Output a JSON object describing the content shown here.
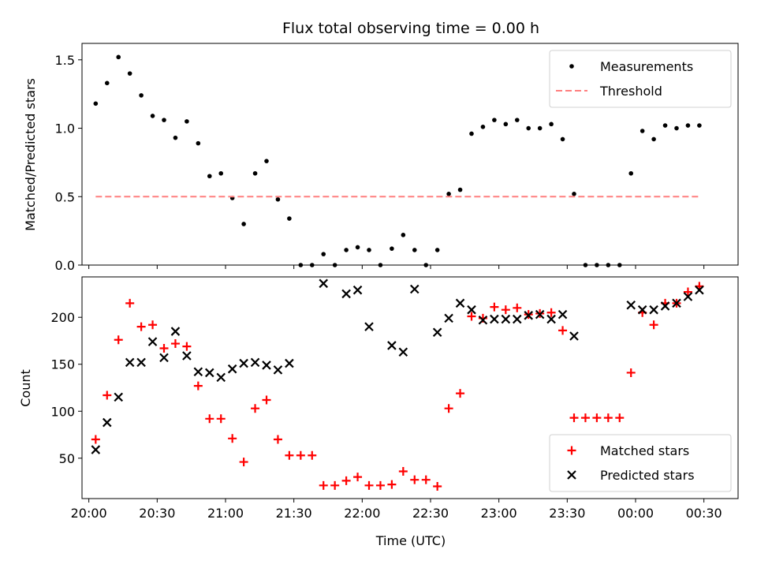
{
  "chart_data": [
    {
      "type": "scatter",
      "title": "Flux total observing time = 0.00 h",
      "xlabel": "",
      "ylabel": "Matched/Predicted stars",
      "ylim": [
        0,
        1.62
      ],
      "yticks": [
        0.0,
        0.5,
        1.0,
        1.5
      ],
      "ytick_labels": [
        "0.0",
        "0.5",
        "1.0",
        "1.5"
      ],
      "x_unit": "time (UTC)",
      "xlim": [
        "19:57",
        "00:45"
      ],
      "xticks": [
        "20:00",
        "20:30",
        "21:00",
        "21:30",
        "22:00",
        "22:30",
        "23:00",
        "23:30",
        "00:00",
        "00:30"
      ],
      "legend_position": "upper right",
      "series": [
        {
          "name": "Measurements",
          "marker": "dot",
          "color": "#000000",
          "x": [
            "20:03",
            "20:08",
            "20:13",
            "20:18",
            "20:23",
            "20:28",
            "20:33",
            "20:38",
            "20:43",
            "20:48",
            "20:53",
            "20:58",
            "21:03",
            "21:08",
            "21:13",
            "21:18",
            "21:23",
            "21:28",
            "21:33",
            "21:38",
            "21:43",
            "21:48",
            "21:53",
            "21:58",
            "22:03",
            "22:08",
            "22:13",
            "22:18",
            "22:23",
            "22:28",
            "22:33",
            "22:38",
            "22:43",
            "22:48",
            "22:53",
            "22:58",
            "23:03",
            "23:08",
            "23:13",
            "23:18",
            "23:23",
            "23:28",
            "23:33",
            "23:38",
            "23:43",
            "23:48",
            "23:53",
            "23:58",
            "00:03",
            "00:08",
            "00:13",
            "00:18",
            "00:23",
            "00:28"
          ],
          "y": [
            1.18,
            1.33,
            1.52,
            1.4,
            1.24,
            1.09,
            1.06,
            0.93,
            1.05,
            0.89,
            0.65,
            0.67,
            0.49,
            0.3,
            0.67,
            0.76,
            0.48,
            0.34,
            0.0,
            0.0,
            0.08,
            0.0,
            0.11,
            0.13,
            0.11,
            0.0,
            0.12,
            0.22,
            0.11,
            0.0,
            0.11,
            0.52,
            0.55,
            0.96,
            1.01,
            1.06,
            1.03,
            1.06,
            1.0,
            1.0,
            1.03,
            0.92,
            0.52,
            0.0,
            0.0,
            0.0,
            0.0,
            0.67,
            0.98,
            0.92,
            1.02,
            1.0,
            1.02,
            1.02
          ]
        },
        {
          "name": "Threshold",
          "marker": "dashed-line",
          "color": "#ff7f7f",
          "x": [
            "20:03",
            "00:28"
          ],
          "y": [
            0.5,
            0.5
          ]
        }
      ]
    },
    {
      "type": "scatter",
      "title": "",
      "xlabel": "Time (UTC)",
      "ylabel": "Count",
      "ylim": [
        7,
        243
      ],
      "yticks": [
        50,
        100,
        150,
        200
      ],
      "ytick_labels": [
        "50",
        "100",
        "150",
        "200"
      ],
      "x_unit": "time (UTC)",
      "xlim": [
        "19:57",
        "00:45"
      ],
      "xticks": [
        "20:00",
        "20:30",
        "21:00",
        "21:30",
        "22:00",
        "22:30",
        "23:00",
        "23:30",
        "00:00",
        "00:30"
      ],
      "xtick_labels": [
        "20:00",
        "20:30",
        "21:00",
        "21:30",
        "22:00",
        "22:30",
        "23:00",
        "23:30",
        "00:00",
        "00:30"
      ],
      "legend_position": "lower right",
      "series": [
        {
          "name": "Matched stars",
          "marker": "plus",
          "color": "#ff0000",
          "x": [
            "20:03",
            "20:08",
            "20:13",
            "20:18",
            "20:23",
            "20:28",
            "20:33",
            "20:38",
            "20:43",
            "20:48",
            "20:53",
            "20:58",
            "21:03",
            "21:08",
            "21:13",
            "21:18",
            "21:23",
            "21:28",
            "21:33",
            "21:38",
            "21:43",
            "21:48",
            "21:53",
            "21:58",
            "22:03",
            "22:08",
            "22:13",
            "22:18",
            "22:23",
            "22:28",
            "22:33",
            "22:38",
            "22:43",
            "22:48",
            "22:53",
            "22:58",
            "23:03",
            "23:08",
            "23:13",
            "23:18",
            "23:23",
            "23:28",
            "23:33",
            "23:38",
            "23:43",
            "23:48",
            "23:53",
            "23:58",
            "00:03",
            "00:08",
            "00:13",
            "00:18",
            "00:23",
            "00:28"
          ],
          "y": [
            70,
            117,
            176,
            215,
            190,
            192,
            167,
            172,
            169,
            127,
            92,
            92,
            71,
            46,
            103,
            112,
            70,
            53,
            53,
            53,
            21,
            21,
            26,
            30,
            21,
            21,
            22,
            36,
            27,
            27,
            20,
            103,
            119,
            201,
            199,
            211,
            208,
            210,
            203,
            204,
            205,
            186,
            93,
            93,
            93,
            93,
            93,
            141,
            205,
            192,
            215,
            215,
            227,
            233
          ]
        },
        {
          "name": "Predicted stars",
          "marker": "x",
          "color": "#000000",
          "x": [
            "20:03",
            "20:08",
            "20:13",
            "20:18",
            "20:23",
            "20:28",
            "20:33",
            "20:38",
            "20:43",
            "20:48",
            "20:53",
            "20:58",
            "21:03",
            "21:08",
            "21:13",
            "21:18",
            "21:23",
            "21:28",
            "21:43",
            "21:53",
            "21:58",
            "22:03",
            "22:13",
            "22:18",
            "22:23",
            "22:33",
            "22:38",
            "22:43",
            "22:48",
            "22:53",
            "22:58",
            "23:03",
            "23:08",
            "23:13",
            "23:18",
            "23:23",
            "23:28",
            "23:33",
            "23:58",
            "00:03",
            "00:08",
            "00:13",
            "00:18",
            "00:23",
            "00:28"
          ],
          "y": [
            59,
            88,
            115,
            152,
            152,
            174,
            157,
            185,
            159,
            142,
            141,
            136,
            145,
            151,
            152,
            149,
            144,
            151,
            236,
            225,
            229,
            190,
            170,
            163,
            230,
            184,
            199,
            215,
            208,
            197,
            198,
            198,
            198,
            202,
            203,
            198,
            203,
            180,
            213,
            208,
            208,
            212,
            215,
            222,
            229
          ]
        }
      ]
    }
  ]
}
